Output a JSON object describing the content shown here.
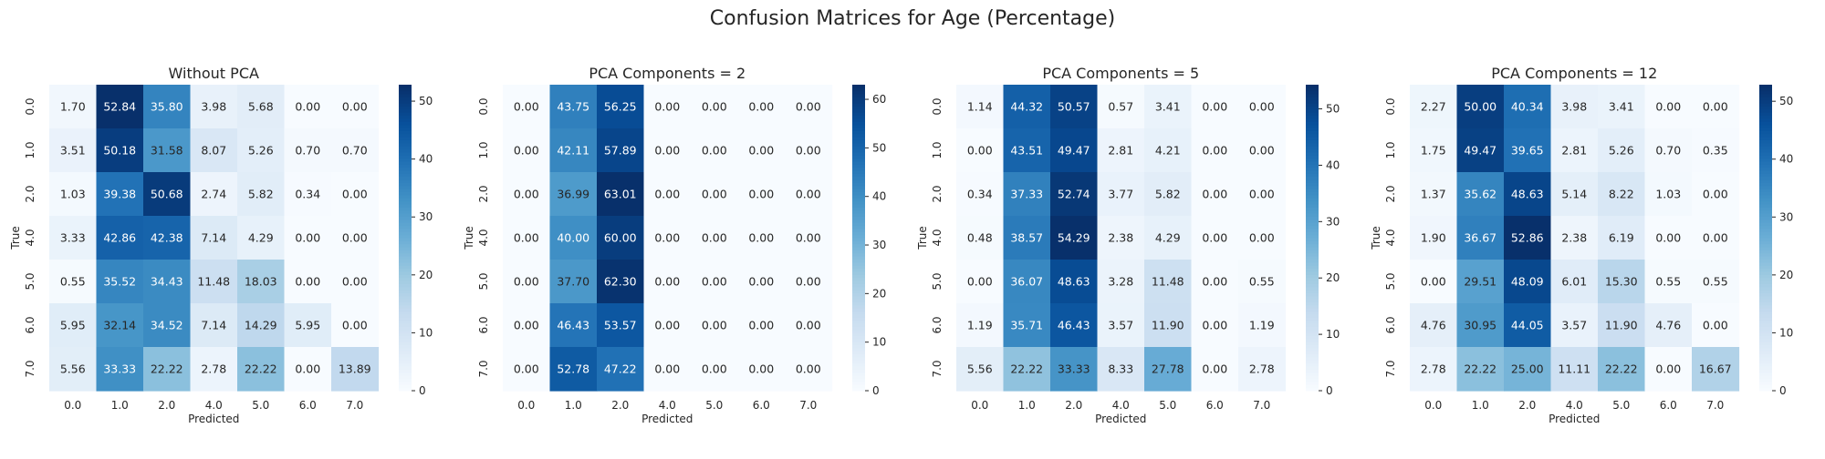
{
  "figure": {
    "title": "Confusion Matrices for Age (Percentage)"
  },
  "chart_data": [
    {
      "type": "heatmap",
      "title": "Without PCA",
      "xlabel": "Predicted",
      "ylabel": "True",
      "x_categories": [
        "0.0",
        "1.0",
        "2.0",
        "4.0",
        "5.0",
        "6.0",
        "7.0"
      ],
      "y_categories": [
        "0.0",
        "1.0",
        "2.0",
        "4.0",
        "5.0",
        "6.0",
        "7.0"
      ],
      "values": [
        [
          1.7,
          52.84,
          35.8,
          3.98,
          5.68,
          0.0,
          0.0
        ],
        [
          3.51,
          50.18,
          31.58,
          8.07,
          5.26,
          0.7,
          0.7
        ],
        [
          1.03,
          39.38,
          50.68,
          2.74,
          5.82,
          0.34,
          0.0
        ],
        [
          3.33,
          42.86,
          42.38,
          7.14,
          4.29,
          0.0,
          0.0
        ],
        [
          0.55,
          35.52,
          34.43,
          11.48,
          18.03,
          0.0,
          0.0
        ],
        [
          5.95,
          32.14,
          34.52,
          7.14,
          14.29,
          5.95,
          0.0
        ],
        [
          5.56,
          33.33,
          22.22,
          2.78,
          22.22,
          0.0,
          13.89
        ]
      ],
      "colorbar": {
        "vmin": 0,
        "vmax": 52.84,
        "ticks": [
          0,
          10,
          20,
          30,
          40,
          50
        ]
      },
      "colormap": "Blues"
    },
    {
      "type": "heatmap",
      "title": "PCA Components = 2",
      "xlabel": "Predicted",
      "ylabel": "True",
      "x_categories": [
        "0.0",
        "1.0",
        "2.0",
        "4.0",
        "5.0",
        "6.0",
        "7.0"
      ],
      "y_categories": [
        "0.0",
        "1.0",
        "2.0",
        "4.0",
        "5.0",
        "6.0",
        "7.0"
      ],
      "values": [
        [
          0.0,
          43.75,
          56.25,
          0.0,
          0.0,
          0.0,
          0.0
        ],
        [
          0.0,
          42.11,
          57.89,
          0.0,
          0.0,
          0.0,
          0.0
        ],
        [
          0.0,
          36.99,
          63.01,
          0.0,
          0.0,
          0.0,
          0.0
        ],
        [
          0.0,
          40.0,
          60.0,
          0.0,
          0.0,
          0.0,
          0.0
        ],
        [
          0.0,
          37.7,
          62.3,
          0.0,
          0.0,
          0.0,
          0.0
        ],
        [
          0.0,
          46.43,
          53.57,
          0.0,
          0.0,
          0.0,
          0.0
        ],
        [
          0.0,
          52.78,
          47.22,
          0.0,
          0.0,
          0.0,
          0.0
        ]
      ],
      "colorbar": {
        "vmin": 0,
        "vmax": 63.01,
        "ticks": [
          0,
          10,
          20,
          30,
          40,
          50,
          60
        ]
      },
      "colormap": "Blues"
    },
    {
      "type": "heatmap",
      "title": "PCA Components = 5",
      "xlabel": "Predicted",
      "ylabel": "True",
      "x_categories": [
        "0.0",
        "1.0",
        "2.0",
        "4.0",
        "5.0",
        "6.0",
        "7.0"
      ],
      "y_categories": [
        "0.0",
        "1.0",
        "2.0",
        "4.0",
        "5.0",
        "6.0",
        "7.0"
      ],
      "values": [
        [
          1.14,
          44.32,
          50.57,
          0.57,
          3.41,
          0.0,
          0.0
        ],
        [
          0.0,
          43.51,
          49.47,
          2.81,
          4.21,
          0.0,
          0.0
        ],
        [
          0.34,
          37.33,
          52.74,
          3.77,
          5.82,
          0.0,
          0.0
        ],
        [
          0.48,
          38.57,
          54.29,
          2.38,
          4.29,
          0.0,
          0.0
        ],
        [
          0.0,
          36.07,
          48.63,
          3.28,
          11.48,
          0.0,
          0.55
        ],
        [
          1.19,
          35.71,
          46.43,
          3.57,
          11.9,
          0.0,
          1.19
        ],
        [
          5.56,
          22.22,
          33.33,
          8.33,
          27.78,
          0.0,
          2.78
        ]
      ],
      "colorbar": {
        "vmin": 0,
        "vmax": 54.29,
        "ticks": [
          0,
          10,
          20,
          30,
          40,
          50
        ]
      },
      "colormap": "Blues"
    },
    {
      "type": "heatmap",
      "title": "PCA Components = 12",
      "xlabel": "Predicted",
      "ylabel": "True",
      "x_categories": [
        "0.0",
        "1.0",
        "2.0",
        "4.0",
        "5.0",
        "6.0",
        "7.0"
      ],
      "y_categories": [
        "0.0",
        "1.0",
        "2.0",
        "4.0",
        "5.0",
        "6.0",
        "7.0"
      ],
      "values": [
        [
          2.27,
          50.0,
          40.34,
          3.98,
          3.41,
          0.0,
          0.0
        ],
        [
          1.75,
          49.47,
          39.65,
          2.81,
          5.26,
          0.7,
          0.35
        ],
        [
          1.37,
          35.62,
          48.63,
          5.14,
          8.22,
          1.03,
          0.0
        ],
        [
          1.9,
          36.67,
          52.86,
          2.38,
          6.19,
          0.0,
          0.0
        ],
        [
          0.0,
          29.51,
          48.09,
          6.01,
          15.3,
          0.55,
          0.55
        ],
        [
          4.76,
          30.95,
          44.05,
          3.57,
          11.9,
          4.76,
          0.0
        ],
        [
          2.78,
          22.22,
          25.0,
          11.11,
          22.22,
          0.0,
          16.67
        ]
      ],
      "colorbar": {
        "vmin": 0,
        "vmax": 52.86,
        "ticks": [
          0,
          10,
          20,
          30,
          40,
          50
        ]
      },
      "colormap": "Blues"
    }
  ]
}
